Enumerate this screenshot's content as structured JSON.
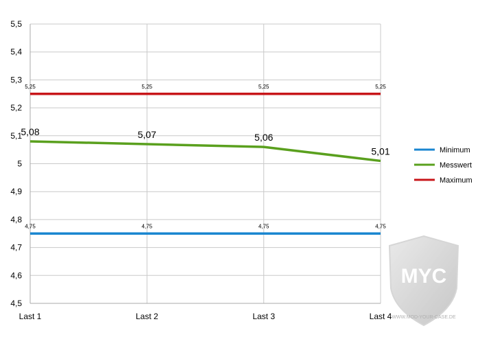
{
  "chart_data": {
    "type": "line",
    "categories": [
      "Last 1",
      "Last 2",
      "Last 3",
      "Last 4"
    ],
    "ylim": [
      4.5,
      5.5
    ],
    "yticks": [
      "4,5",
      "4,6",
      "4,7",
      "4,8",
      "4,9",
      "5",
      "5,1",
      "5,2",
      "5,3",
      "5,4",
      "5,5"
    ],
    "grid": true,
    "legend_position": "right",
    "series": [
      {
        "name": "Minimum",
        "values": [
          4.75,
          4.75,
          4.75,
          4.75
        ],
        "labels": [
          "4,75",
          "4,75",
          "4,75",
          "4,75"
        ],
        "color": "#1a86d0",
        "label_style": "small"
      },
      {
        "name": "Messwert",
        "values": [
          5.08,
          5.07,
          5.06,
          5.01
        ],
        "labels": [
          "5,08",
          "5,07",
          "5,06",
          "5,01"
        ],
        "color": "#5aa01e",
        "label_style": "big"
      },
      {
        "name": "Maximum",
        "values": [
          5.25,
          5.25,
          5.25,
          5.25
        ],
        "labels": [
          "5,25",
          "5,25",
          "5,25",
          "5,25"
        ],
        "color": "#c8161a",
        "label_style": "small"
      }
    ]
  },
  "watermark": {
    "text": "MYC",
    "url_text": "WWW.MOD-YOUR-CASE.DE",
    "color": "#8a8a8a"
  }
}
